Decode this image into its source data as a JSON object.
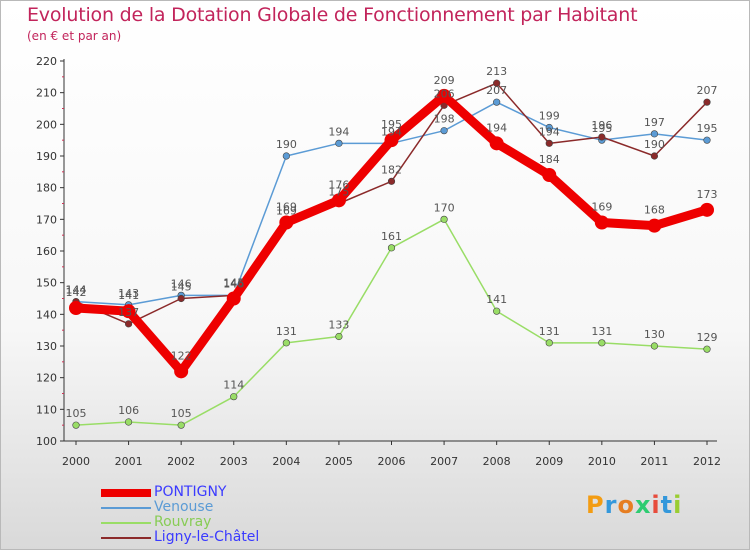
{
  "title": "Evolution de la Dotation Globale de Fonctionnement par Habitant",
  "subtitle": "(en € et par an)",
  "logo": {
    "text": "Proxiti",
    "letter_colors": [
      "#f39c12",
      "#3498db",
      "#e67e22",
      "#2ecc71",
      "#e74c3c",
      "#3498db",
      "#9acd32"
    ]
  },
  "chart_data": {
    "type": "line",
    "x": [
      "2000",
      "2001",
      "2002",
      "2003",
      "2004",
      "2005",
      "2006",
      "2007",
      "2008",
      "2009",
      "2010",
      "2011",
      "2012"
    ],
    "ylim": [
      100,
      220
    ],
    "yticks": [
      100,
      110,
      120,
      130,
      140,
      150,
      160,
      170,
      180,
      190,
      200,
      210,
      220
    ],
    "grid": false,
    "legend_position": "bottom-left",
    "series": [
      {
        "name": "PONTIGNY",
        "color": "#ee0000",
        "label_color": "#3a3aff",
        "width": 9,
        "marker_r": 7,
        "values": [
          142,
          141,
          122,
          145,
          169,
          176,
          195,
          209,
          194,
          184,
          169,
          168,
          173
        ]
      },
      {
        "name": "Venouse",
        "color": "#5b9bd5",
        "label_color": "#5b9bd5",
        "width": 1.5,
        "marker_r": 3.3,
        "values": [
          144,
          143,
          146,
          146,
          190,
          194,
          194,
          198,
          207,
          199,
          195,
          197,
          195
        ]
      },
      {
        "name": "Rouvray",
        "color": "#99dd66",
        "label_color": "#88cc55",
        "width": 1.5,
        "marker_r": 3.3,
        "values": [
          105,
          106,
          105,
          114,
          131,
          133,
          161,
          170,
          141,
          131,
          131,
          130,
          129
        ]
      },
      {
        "name": "Ligny-le-Châtel",
        "color": "#8b2a2a",
        "label_color": "#3a3aff",
        "width": 1.5,
        "marker_r": 3.3,
        "values": [
          144,
          137,
          145,
          146,
          169,
          175,
          182,
          206,
          213,
          194,
          196,
          190,
          207
        ]
      }
    ]
  }
}
